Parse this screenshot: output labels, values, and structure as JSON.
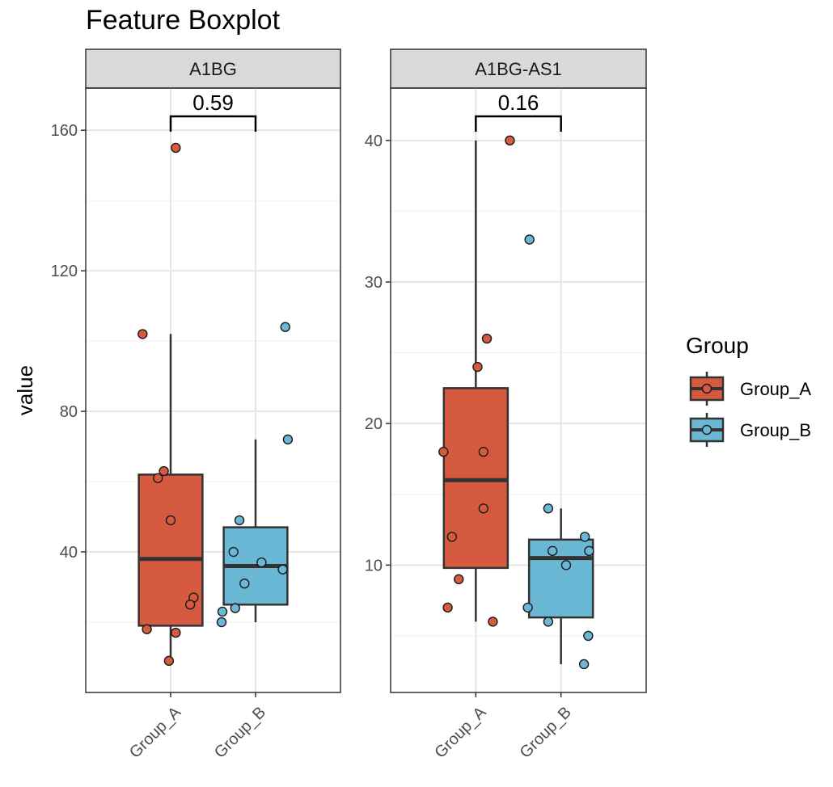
{
  "chart_data": {
    "type": "boxplot",
    "title": "Feature Boxplot",
    "ylabel": "value",
    "legend": {
      "title": "Group",
      "position": "right",
      "entries": [
        {
          "name": "Group_A",
          "color": "#D55A40"
        },
        {
          "name": "Group_B",
          "color": "#6BB8D6"
        }
      ]
    },
    "grid": true,
    "panels": [
      {
        "strip": "A1BG",
        "ylim": [
          0,
          172
        ],
        "yticks": [
          40,
          80,
          120,
          160
        ],
        "categories": [
          "Group_A",
          "Group_B"
        ],
        "pvalue": "0.59",
        "boxes": [
          {
            "group": "Group_A",
            "lower_whisker": 9,
            "q1": 19,
            "median": 38,
            "q3": 62,
            "upper_whisker": 102
          },
          {
            "group": "Group_B",
            "lower_whisker": 20,
            "q1": 25,
            "median": 36,
            "q3": 47,
            "upper_whisker": 72
          }
        ],
        "points": [
          {
            "group": "Group_A",
            "offset": 0.06,
            "value": 155
          },
          {
            "group": "Group_A",
            "offset": -0.33,
            "value": 102
          },
          {
            "group": "Group_A",
            "offset": -0.08,
            "value": 63
          },
          {
            "group": "Group_A",
            "offset": -0.15,
            "value": 61
          },
          {
            "group": "Group_A",
            "offset": 0.0,
            "value": 49
          },
          {
            "group": "Group_A",
            "offset": 0.27,
            "value": 27
          },
          {
            "group": "Group_A",
            "offset": 0.23,
            "value": 25
          },
          {
            "group": "Group_A",
            "offset": -0.28,
            "value": 18
          },
          {
            "group": "Group_A",
            "offset": 0.06,
            "value": 17
          },
          {
            "group": "Group_A",
            "offset": -0.02,
            "value": 9
          },
          {
            "group": "Group_B",
            "offset": 0.35,
            "value": 104
          },
          {
            "group": "Group_B",
            "offset": 0.38,
            "value": 72
          },
          {
            "group": "Group_B",
            "offset": -0.19,
            "value": 49
          },
          {
            "group": "Group_B",
            "offset": -0.26,
            "value": 40
          },
          {
            "group": "Group_B",
            "offset": 0.07,
            "value": 37
          },
          {
            "group": "Group_B",
            "offset": 0.32,
            "value": 35
          },
          {
            "group": "Group_B",
            "offset": -0.13,
            "value": 31
          },
          {
            "group": "Group_B",
            "offset": -0.24,
            "value": 24
          },
          {
            "group": "Group_B",
            "offset": -0.39,
            "value": 23
          },
          {
            "group": "Group_B",
            "offset": -0.4,
            "value": 20
          }
        ]
      },
      {
        "strip": "A1BG-AS1",
        "ylim": [
          1,
          43.7
        ],
        "yticks": [
          10,
          20,
          30,
          40
        ],
        "categories": [
          "Group_A",
          "Group_B"
        ],
        "pvalue": "0.16",
        "boxes": [
          {
            "group": "Group_A",
            "lower_whisker": 6,
            "q1": 9.8,
            "median": 16,
            "q3": 22.5,
            "upper_whisker": 40
          },
          {
            "group": "Group_B",
            "lower_whisker": 3,
            "q1": 6.3,
            "median": 10.5,
            "q3": 11.8,
            "upper_whisker": 14
          }
        ],
        "points": [
          {
            "group": "Group_A",
            "offset": 0.4,
            "value": 40
          },
          {
            "group": "Group_A",
            "offset": 0.13,
            "value": 26
          },
          {
            "group": "Group_A",
            "offset": 0.02,
            "value": 24
          },
          {
            "group": "Group_A",
            "offset": -0.38,
            "value": 18
          },
          {
            "group": "Group_A",
            "offset": 0.09,
            "value": 18
          },
          {
            "group": "Group_A",
            "offset": 0.09,
            "value": 14
          },
          {
            "group": "Group_A",
            "offset": -0.28,
            "value": 12
          },
          {
            "group": "Group_A",
            "offset": -0.2,
            "value": 9
          },
          {
            "group": "Group_A",
            "offset": -0.33,
            "value": 7
          },
          {
            "group": "Group_A",
            "offset": 0.2,
            "value": 6
          },
          {
            "group": "Group_B",
            "offset": -0.37,
            "value": 33
          },
          {
            "group": "Group_B",
            "offset": -0.15,
            "value": 14
          },
          {
            "group": "Group_B",
            "offset": 0.28,
            "value": 12
          },
          {
            "group": "Group_B",
            "offset": -0.1,
            "value": 11
          },
          {
            "group": "Group_B",
            "offset": 0.33,
            "value": 11
          },
          {
            "group": "Group_B",
            "offset": 0.06,
            "value": 10
          },
          {
            "group": "Group_B",
            "offset": -0.39,
            "value": 7
          },
          {
            "group": "Group_B",
            "offset": -0.15,
            "value": 6
          },
          {
            "group": "Group_B",
            "offset": 0.32,
            "value": 5
          },
          {
            "group": "Group_B",
            "offset": 0.27,
            "value": 3
          }
        ]
      }
    ]
  }
}
